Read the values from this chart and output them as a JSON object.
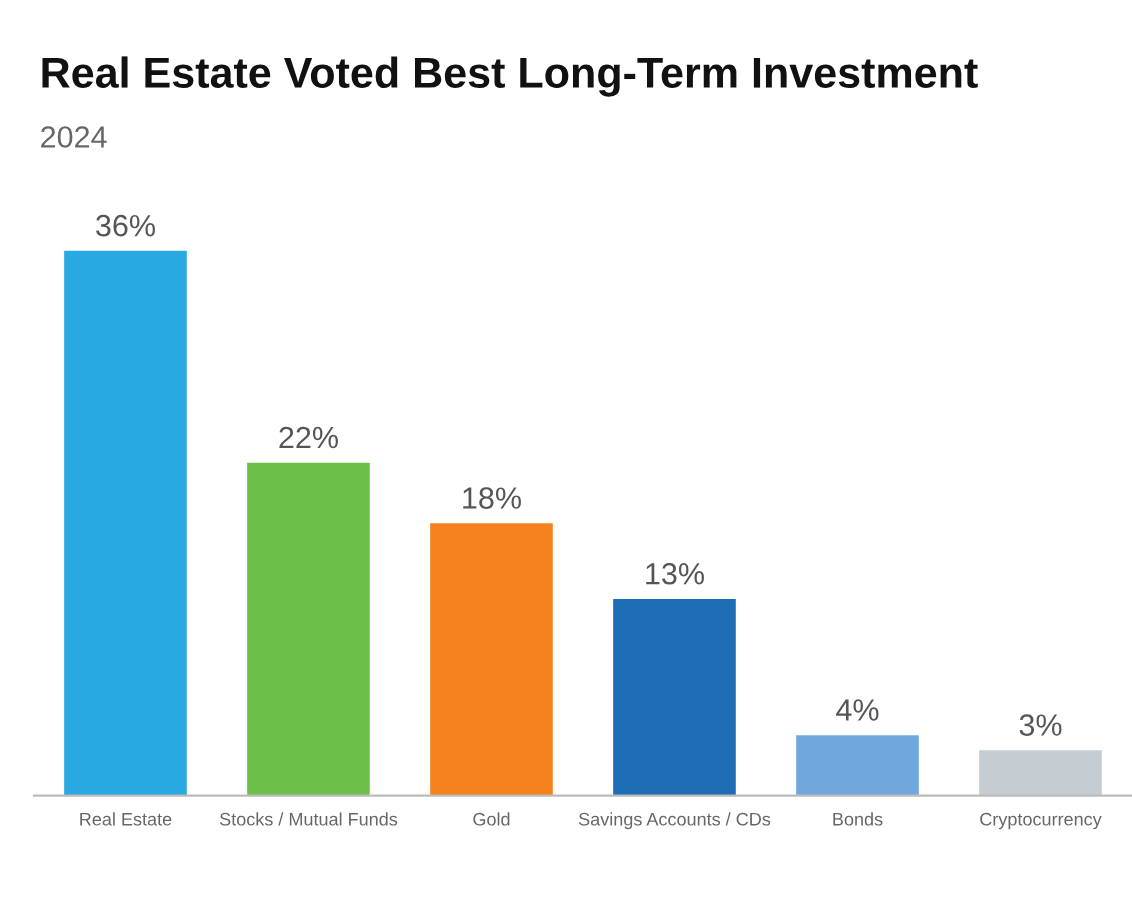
{
  "chart_data": {
    "type": "bar",
    "title": "Real Estate Voted Best Long-Term Investment",
    "subtitle": "2024",
    "categories": [
      "Real Estate",
      "Stocks / Mutual Funds",
      "Gold",
      "Savings Accounts / CDs",
      "Bonds",
      "Cryptocurrency"
    ],
    "values": [
      36,
      22,
      18,
      13,
      4,
      3
    ],
    "value_labels": [
      "36%",
      "22%",
      "18%",
      "13%",
      "4%",
      "3%"
    ],
    "colors": [
      "#29a9e1",
      "#6cc04a",
      "#f5821f",
      "#1f6db5",
      "#6fa8dc",
      "#c5cdd3"
    ],
    "grid": false,
    "legend": false
  }
}
